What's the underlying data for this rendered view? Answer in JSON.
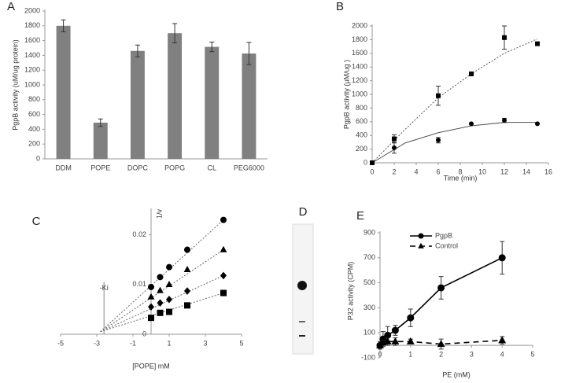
{
  "chart_data": [
    {
      "type": "bar",
      "title": "A",
      "ylabel": "PgpB activity (uM/ug protein)",
      "categories": [
        "DDM",
        "POPE",
        "DOPC",
        "POPG",
        "CL",
        "PEG6000"
      ],
      "values": [
        1800,
        490,
        1460,
        1700,
        1515,
        1425
      ],
      "errors": [
        80,
        50,
        80,
        130,
        65,
        150
      ],
      "color": "#808080",
      "ylim": [
        0,
        2000
      ],
      "yticks": [
        0,
        200,
        400,
        600,
        800,
        1000,
        1200,
        1400,
        1600,
        1800,
        2000
      ]
    },
    {
      "type": "scatter",
      "title": "B",
      "xlabel": "Time (min)",
      "ylabel": "PgpB activity (μM/ug )",
      "xlim": [
        0,
        16
      ],
      "xticks": [
        0,
        2,
        4,
        6,
        8,
        10,
        12,
        14,
        16
      ],
      "ylim": [
        0,
        2000
      ],
      "yticks": [
        0,
        200,
        400,
        600,
        800,
        1000,
        1200,
        1400,
        1600,
        1800,
        2000
      ],
      "series": [
        {
          "marker": "square",
          "color": "#000000",
          "x": [
            0,
            2,
            6,
            9,
            12,
            15
          ],
          "values": [
            0,
            350,
            980,
            1300,
            1830,
            1740
          ],
          "errors": [
            0,
            60,
            140,
            0,
            170,
            0
          ]
        },
        {
          "marker": "circle",
          "color": "#000000",
          "x": [
            0,
            2,
            6,
            9,
            12,
            15
          ],
          "values": [
            0,
            220,
            330,
            570,
            620,
            570
          ],
          "errors": [
            0,
            80,
            40,
            0,
            30,
            0
          ]
        }
      ],
      "fits": [
        {
          "dash": "dotted",
          "color": "#555555",
          "x": [
            0,
            3,
            6,
            9,
            12,
            15
          ],
          "values": [
            0,
            490,
            950,
            1300,
            1600,
            1810
          ]
        },
        {
          "dash": "solid",
          "color": "#555555",
          "x": [
            0,
            3,
            6,
            9,
            12,
            15
          ],
          "values": [
            0,
            290,
            440,
            540,
            590,
            590
          ]
        }
      ]
    },
    {
      "type": "scatter",
      "title": "C",
      "xlabel": "[POPE] mM",
      "ylabel": "1/v",
      "xlim": [
        -5,
        5
      ],
      "xticks": [
        -5,
        -3,
        -1,
        1,
        3,
        5
      ],
      "ylim": [
        0,
        0.025
      ],
      "yticks": [
        0,
        0.01,
        0.02
      ],
      "series": [
        {
          "marker": "circle",
          "color": "#000000",
          "x": [
            0,
            0.5,
            1,
            2,
            4
          ],
          "values": [
            0.0095,
            0.0115,
            0.0135,
            0.017,
            0.023
          ]
        },
        {
          "marker": "triangle",
          "color": "#000000",
          "x": [
            0,
            0.5,
            1,
            2,
            4
          ],
          "values": [
            0.0075,
            0.0088,
            0.01,
            0.013,
            0.017
          ]
        },
        {
          "marker": "diamond",
          "color": "#000000",
          "x": [
            0,
            0.5,
            1,
            2,
            4
          ],
          "values": [
            0.0055,
            0.0063,
            0.007,
            0.0087,
            0.0118
          ]
        },
        {
          "marker": "square",
          "color": "#000000",
          "x": [
            0,
            0.5,
            1,
            2,
            4
          ],
          "values": [
            0.0033,
            0.0043,
            0.0045,
            0.0058,
            0.0083
          ]
        }
      ],
      "fits": [
        {
          "dash": "dotted",
          "color": "#666666",
          "x": [
            -2.8,
            4
          ],
          "values": [
            0.0005,
            0.023
          ]
        },
        {
          "dash": "dotted",
          "color": "#666666",
          "x": [
            -2.8,
            4
          ],
          "values": [
            0.0005,
            0.017
          ]
        },
        {
          "dash": "dotted",
          "color": "#666666",
          "x": [
            -2.8,
            4
          ],
          "values": [
            0.0005,
            0.0118
          ]
        },
        {
          "dash": "dotted",
          "color": "#666666",
          "x": [
            -2.8,
            4
          ],
          "values": [
            0.0005,
            0.0083
          ]
        }
      ],
      "ki": {
        "x": -2.6,
        "top": 0.0105,
        "label": "-Ki"
      }
    },
    {
      "type": "image",
      "title": "D"
    },
    {
      "type": "line",
      "title": "E",
      "xlabel": "PE (mM)",
      "ylabel": "P32 activity (CPM)",
      "xlim": [
        0,
        5
      ],
      "xticks": [
        0,
        1,
        2,
        3,
        4,
        5
      ],
      "ylim": [
        -100,
        900
      ],
      "yticks": [
        -100,
        100,
        300,
        500,
        700,
        900
      ],
      "legend": "top-left",
      "series": [
        {
          "name": "PgpB",
          "marker": "circle",
          "dash": "solid",
          "color": "#000000",
          "x": [
            0,
            0.1,
            0.25,
            0.5,
            1,
            2,
            4
          ],
          "values": [
            0,
            50,
            80,
            120,
            220,
            460,
            700
          ],
          "errors": [
            30,
            60,
            70,
            40,
            70,
            90,
            130
          ]
        },
        {
          "name": "Control",
          "marker": "triangle",
          "dash": "dashed",
          "color": "#000000",
          "x": [
            0,
            0.1,
            0.25,
            0.5,
            1,
            2,
            4
          ],
          "values": [
            0,
            20,
            30,
            30,
            30,
            10,
            40
          ],
          "errors": [
            20,
            20,
            30,
            30,
            20,
            40,
            30
          ]
        }
      ]
    }
  ]
}
